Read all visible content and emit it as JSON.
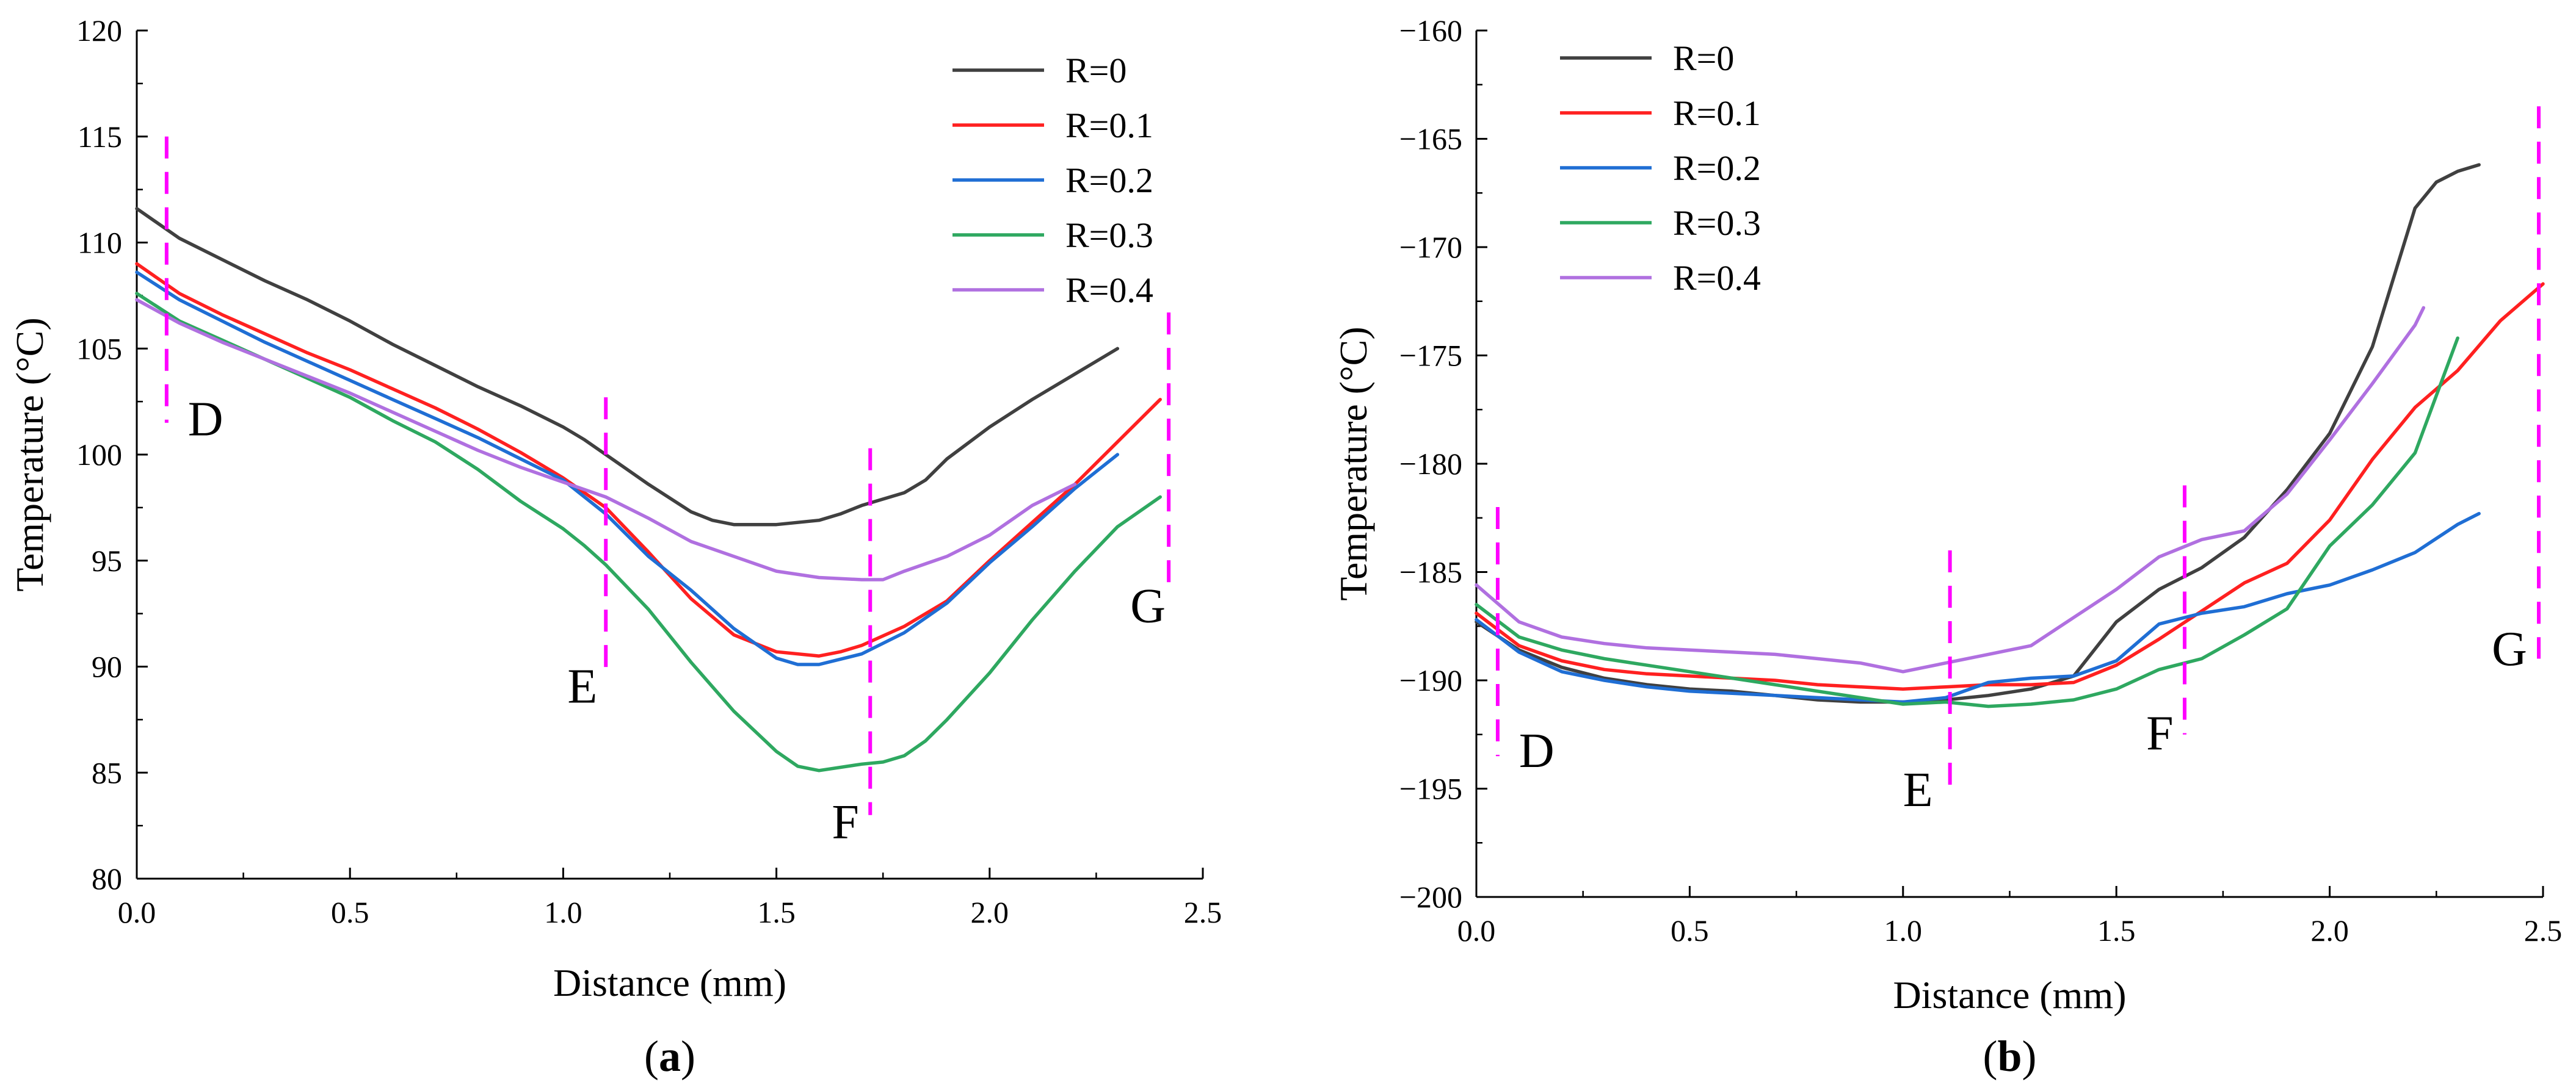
{
  "figure": {
    "panels": [
      {
        "label_open": "(",
        "label_letter": "a",
        "label_close": ")"
      },
      {
        "label_open": "(",
        "label_letter": "b",
        "label_close": ")"
      }
    ]
  },
  "chart_data": [
    {
      "type": "line",
      "panel": "a",
      "title": "",
      "xlabel": "Distance (mm)",
      "ylabel": "Temperature (°C)",
      "xlim": [
        0,
        2.5
      ],
      "ylim": [
        80,
        120
      ],
      "xticks": [
        0.0,
        0.5,
        1.0,
        1.5,
        2.0,
        2.5
      ],
      "xtick_labels": [
        "0.0",
        "0.5",
        "1.0",
        "1.5",
        "2.0",
        "2.5"
      ],
      "yticks": [
        80,
        85,
        90,
        95,
        100,
        105,
        110,
        115,
        120
      ],
      "ytick_labels": [
        "80",
        "85",
        "90",
        "95",
        "100",
        "105",
        "110",
        "115",
        "120"
      ],
      "legend_position": "top-right",
      "series": [
        {
          "name": "R=0",
          "color": "#404040",
          "x": [
            0.0,
            0.1,
            0.2,
            0.3,
            0.4,
            0.5,
            0.6,
            0.7,
            0.8,
            0.9,
            1.0,
            1.05,
            1.1,
            1.2,
            1.3,
            1.35,
            1.4,
            1.5,
            1.6,
            1.65,
            1.7,
            1.8,
            1.85,
            1.9,
            2.0,
            2.1,
            2.2,
            2.3
          ],
          "y": [
            111.6,
            110.2,
            109.2,
            108.2,
            107.3,
            106.3,
            105.2,
            104.2,
            103.2,
            102.3,
            101.3,
            100.7,
            100.0,
            98.6,
            97.3,
            96.9,
            96.7,
            96.7,
            96.9,
            97.2,
            97.6,
            98.2,
            98.8,
            99.8,
            101.3,
            102.6,
            103.8,
            105.0
          ]
        },
        {
          "name": "R=0.1",
          "color": "#ff2020",
          "x": [
            0.0,
            0.1,
            0.2,
            0.3,
            0.4,
            0.5,
            0.6,
            0.7,
            0.8,
            0.9,
            1.0,
            1.1,
            1.2,
            1.3,
            1.4,
            1.5,
            1.6,
            1.65,
            1.7,
            1.8,
            1.9,
            2.0,
            2.1,
            2.2,
            2.3,
            2.4
          ],
          "y": [
            109.0,
            107.6,
            106.6,
            105.7,
            104.8,
            104.0,
            103.1,
            102.2,
            101.2,
            100.1,
            98.9,
            97.5,
            95.4,
            93.2,
            91.5,
            90.7,
            90.5,
            90.7,
            91.0,
            91.9,
            93.1,
            95.0,
            96.8,
            98.6,
            100.6,
            102.6
          ]
        },
        {
          "name": "R=0.2",
          "color": "#1f6ed4",
          "x": [
            0.0,
            0.1,
            0.2,
            0.3,
            0.4,
            0.5,
            0.6,
            0.7,
            0.8,
            0.9,
            1.0,
            1.1,
            1.2,
            1.3,
            1.4,
            1.5,
            1.55,
            1.6,
            1.7,
            1.8,
            1.9,
            2.0,
            2.1,
            2.2,
            2.3
          ],
          "y": [
            108.6,
            107.3,
            106.3,
            105.3,
            104.4,
            103.5,
            102.6,
            101.7,
            100.8,
            99.8,
            98.8,
            97.2,
            95.2,
            93.6,
            91.8,
            90.4,
            90.1,
            90.1,
            90.6,
            91.6,
            93.0,
            94.9,
            96.6,
            98.4,
            100.0
          ]
        },
        {
          "name": "R=0.3",
          "color": "#2ea860",
          "x": [
            0.0,
            0.1,
            0.2,
            0.3,
            0.4,
            0.5,
            0.6,
            0.7,
            0.8,
            0.9,
            1.0,
            1.05,
            1.1,
            1.2,
            1.3,
            1.4,
            1.5,
            1.55,
            1.6,
            1.7,
            1.75,
            1.8,
            1.85,
            1.9,
            2.0,
            2.1,
            2.2,
            2.3,
            2.4
          ],
          "y": [
            107.6,
            106.3,
            105.4,
            104.5,
            103.6,
            102.7,
            101.6,
            100.6,
            99.3,
            97.8,
            96.5,
            95.7,
            94.8,
            92.7,
            90.2,
            87.9,
            86.0,
            85.3,
            85.1,
            85.4,
            85.5,
            85.8,
            86.5,
            87.5,
            89.7,
            92.2,
            94.5,
            96.6,
            98.0
          ]
        },
        {
          "name": "R=0.4",
          "color": "#b070e0",
          "x": [
            0.0,
            0.1,
            0.2,
            0.3,
            0.4,
            0.5,
            0.6,
            0.7,
            0.8,
            0.9,
            1.0,
            1.1,
            1.2,
            1.3,
            1.4,
            1.5,
            1.6,
            1.7,
            1.75,
            1.8,
            1.9,
            2.0,
            2.1,
            2.2
          ],
          "y": [
            107.3,
            106.2,
            105.3,
            104.5,
            103.7,
            102.9,
            102.0,
            101.1,
            100.2,
            99.4,
            98.7,
            98.0,
            97.0,
            95.9,
            95.2,
            94.5,
            94.2,
            94.1,
            94.1,
            94.5,
            95.2,
            96.2,
            97.6,
            98.6
          ]
        }
      ],
      "markers": [
        {
          "label": "D",
          "x": 0.07,
          "y_from": 101.5,
          "y_to": 115.0,
          "label_x": 0.12,
          "label_y": 100.9
        },
        {
          "label": "E",
          "x": 1.1,
          "y_from": 89.5,
          "y_to": 102.7,
          "label_x": 1.01,
          "label_y": 88.3
        },
        {
          "label": "F",
          "x": 1.72,
          "y_from": 83.0,
          "y_to": 100.3,
          "label_x": 1.63,
          "label_y": 81.9
        },
        {
          "label": "G",
          "x": 2.42,
          "y_from": 93.4,
          "y_to": 106.7,
          "label_x": 2.33,
          "label_y": 92.1
        }
      ]
    },
    {
      "type": "line",
      "panel": "b",
      "title": "",
      "xlabel": "Distance (mm)",
      "ylabel": "Temperature (°C)",
      "xlim": [
        0,
        2.5
      ],
      "ylim": [
        -200,
        -160
      ],
      "xticks": [
        0.0,
        0.5,
        1.0,
        1.5,
        2.0,
        2.5
      ],
      "xtick_labels": [
        "0.0",
        "0.5",
        "1.0",
        "1.5",
        "2.0",
        "2.5"
      ],
      "yticks": [
        -200,
        -195,
        -190,
        -185,
        -180,
        -175,
        -170,
        -165,
        -160
      ],
      "ytick_labels": [
        "−200",
        "−195",
        "−190",
        "−185",
        "−180",
        "−175",
        "−170",
        "−165",
        "−160"
      ],
      "legend_position": "top-left",
      "series": [
        {
          "name": "R=0",
          "color": "#404040",
          "x": [
            0.0,
            0.1,
            0.2,
            0.3,
            0.4,
            0.5,
            0.6,
            0.7,
            0.8,
            0.9,
            1.0,
            1.1,
            1.2,
            1.3,
            1.4,
            1.5,
            1.6,
            1.7,
            1.8,
            1.9,
            2.0,
            2.1,
            2.2,
            2.25,
            2.3,
            2.35
          ],
          "y": [
            -187.3,
            -188.6,
            -189.4,
            -189.9,
            -190.2,
            -190.4,
            -190.5,
            -190.7,
            -190.9,
            -191.0,
            -191.0,
            -190.9,
            -190.7,
            -190.4,
            -189.8,
            -187.3,
            -185.8,
            -184.8,
            -183.4,
            -181.2,
            -178.6,
            -174.6,
            -168.2,
            -167.0,
            -166.5,
            -166.2
          ]
        },
        {
          "name": "R=0.1",
          "color": "#ff2020",
          "x": [
            0.0,
            0.1,
            0.2,
            0.3,
            0.4,
            0.5,
            0.6,
            0.7,
            0.8,
            0.9,
            1.0,
            1.1,
            1.2,
            1.3,
            1.4,
            1.5,
            1.6,
            1.7,
            1.8,
            1.9,
            2.0,
            2.1,
            2.2,
            2.3,
            2.4,
            2.5
          ],
          "y": [
            -186.9,
            -188.4,
            -189.1,
            -189.5,
            -189.7,
            -189.8,
            -189.9,
            -190.0,
            -190.2,
            -190.3,
            -190.4,
            -190.3,
            -190.2,
            -190.2,
            -190.1,
            -189.3,
            -188.1,
            -186.8,
            -185.5,
            -184.6,
            -182.6,
            -179.8,
            -177.4,
            -175.7,
            -173.4,
            -171.7
          ]
        },
        {
          "name": "R=0.2",
          "color": "#1f6ed4",
          "x": [
            0.0,
            0.1,
            0.2,
            0.3,
            0.4,
            0.5,
            0.6,
            0.7,
            0.8,
            0.9,
            1.0,
            1.1,
            1.2,
            1.3,
            1.4,
            1.5,
            1.6,
            1.7,
            1.8,
            1.9,
            2.0,
            2.1,
            2.2,
            2.3,
            2.35
          ],
          "y": [
            -187.2,
            -188.7,
            -189.6,
            -190.0,
            -190.3,
            -190.5,
            -190.6,
            -190.7,
            -190.8,
            -190.9,
            -191.0,
            -190.8,
            -190.1,
            -189.9,
            -189.8,
            -189.1,
            -187.4,
            -186.9,
            -186.6,
            -186.0,
            -185.6,
            -184.9,
            -184.1,
            -182.8,
            -182.3
          ]
        },
        {
          "name": "R=0.3",
          "color": "#2ea860",
          "x": [
            0.0,
            0.1,
            0.2,
            0.3,
            0.4,
            0.5,
            0.6,
            0.7,
            0.8,
            0.9,
            1.0,
            1.1,
            1.2,
            1.3,
            1.4,
            1.5,
            1.6,
            1.7,
            1.8,
            1.9,
            2.0,
            2.1,
            2.2,
            2.3
          ],
          "y": [
            -186.5,
            -188.0,
            -188.6,
            -189.0,
            -189.3,
            -189.6,
            -189.9,
            -190.2,
            -190.5,
            -190.8,
            -191.1,
            -191.0,
            -191.2,
            -191.1,
            -190.9,
            -190.4,
            -189.5,
            -189.0,
            -187.9,
            -186.7,
            -183.8,
            -181.9,
            -179.5,
            -174.2
          ]
        },
        {
          "name": "R=0.4",
          "color": "#b070e0",
          "x": [
            0.0,
            0.1,
            0.2,
            0.3,
            0.4,
            0.5,
            0.6,
            0.7,
            0.8,
            0.9,
            1.0,
            1.1,
            1.2,
            1.3,
            1.4,
            1.5,
            1.6,
            1.7,
            1.8,
            1.9,
            2.0,
            2.1,
            2.2,
            2.22
          ],
          "y": [
            -185.6,
            -187.3,
            -188.0,
            -188.3,
            -188.5,
            -188.6,
            -188.7,
            -188.8,
            -189.0,
            -189.2,
            -189.6,
            -189.2,
            -188.8,
            -188.4,
            -187.1,
            -185.8,
            -184.3,
            -183.5,
            -183.1,
            -181.4,
            -178.9,
            -176.3,
            -173.6,
            -172.8
          ]
        }
      ],
      "markers": [
        {
          "label": "D",
          "x": 0.05,
          "y_from": -193.5,
          "y_to": -182.0,
          "label_x": 0.1,
          "label_y": -194.0
        },
        {
          "label": "E",
          "x": 1.11,
          "y_from": -195.0,
          "y_to": -184.0,
          "label_x": 1.0,
          "label_y": -195.8
        },
        {
          "label": "F",
          "x": 1.66,
          "y_from": -192.5,
          "y_to": -181.0,
          "label_x": 1.57,
          "label_y": -193.2
        },
        {
          "label": "G",
          "x": 2.49,
          "y_from": -189.0,
          "y_to": -163.5,
          "label_x": 2.38,
          "label_y": -189.3
        }
      ]
    }
  ]
}
